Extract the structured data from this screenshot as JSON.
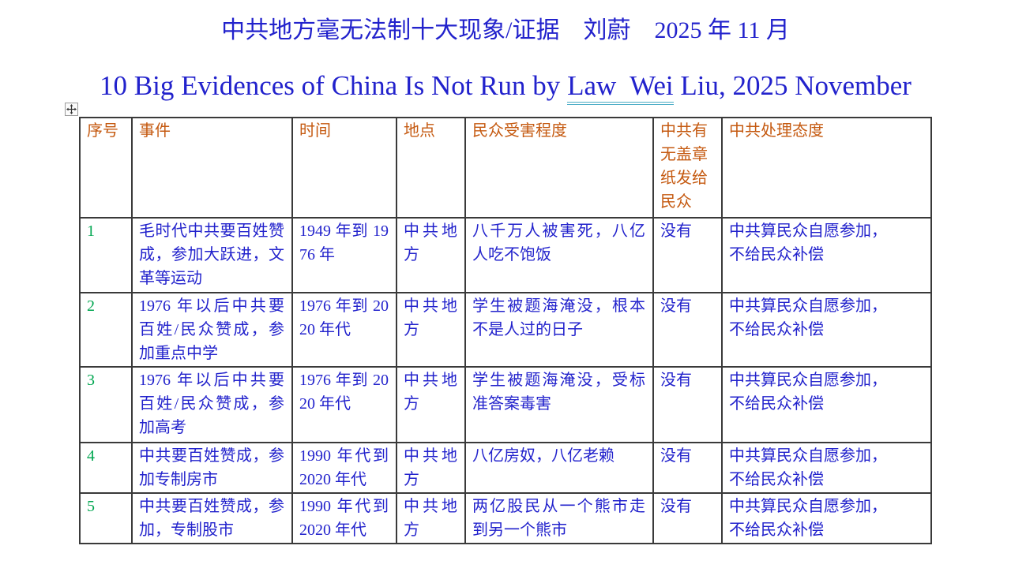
{
  "title": "中共地方毫无法制十大现象/证据　刘蔚　2025 年 11 月",
  "subtitle": {
    "prefix": "10 Big Evidences of China Is Not Run by ",
    "underlined": "Law  Wei",
    "suffix": " Liu, 2025 November"
  },
  "colors": {
    "title_blue": "#2222CC",
    "body_blue": "#2222CC",
    "header_orange": "#C55A11",
    "index_green": "#00A650",
    "border_gray": "#3a3a3a",
    "underline_teal": "#4bacc6"
  },
  "icons": {
    "table_move_handle": "move-cross-icon"
  },
  "table": {
    "headers": [
      "序号",
      "事件",
      "时间",
      "地点",
      "民众受害程度",
      "中共有无盖章纸发给民众",
      "中共处理态度"
    ],
    "rows": [
      {
        "index": "1",
        "event": "毛时代中共要百姓赞成，参加大跃进，文革等运动",
        "time": "1949 年到 1976 年",
        "place": "中共地方",
        "harm": "八千万人被害死，八亿人吃不饱饭",
        "stamped_paper": "没有",
        "attitude": "中共算民众自愿参加，\n不给民众补偿"
      },
      {
        "index": "2",
        "event": "1976 年以后中共要百姓/民众赞成，参加重点中学",
        "time": "1976 年到 2020 年代",
        "place": "中共地方",
        "harm": "学生被题海淹没，根本不是人过的日子",
        "stamped_paper": "没有",
        "attitude": "中共算民众自愿参加，\n不给民众补偿"
      },
      {
        "index": "3",
        "event": "1976 年以后中共要百姓/民众赞成，参加高考",
        "time": "1976 年到 2020 年代",
        "place": "中共地方",
        "harm": "学生被题海淹没，受标准答案毒害",
        "stamped_paper": "没有",
        "attitude": "中共算民众自愿参加，\n不给民众补偿"
      },
      {
        "index": "4",
        "event": "中共要百姓赞成，参加专制房市",
        "time": "1990 年代到 2020 年代",
        "place": "中共地方",
        "harm": "八亿房奴，八亿老赖",
        "stamped_paper": "没有",
        "attitude": "中共算民众自愿参加，\n不给民众补偿"
      },
      {
        "index": "5",
        "event": "中共要百姓赞成，参加，专制股市",
        "time": "1990 年代到 2020 年代",
        "place": "中共地方",
        "harm": "两亿股民从一个熊市走到另一个熊市",
        "stamped_paper": "没有",
        "attitude": "中共算民众自愿参加，\n不给民众补偿"
      }
    ]
  }
}
